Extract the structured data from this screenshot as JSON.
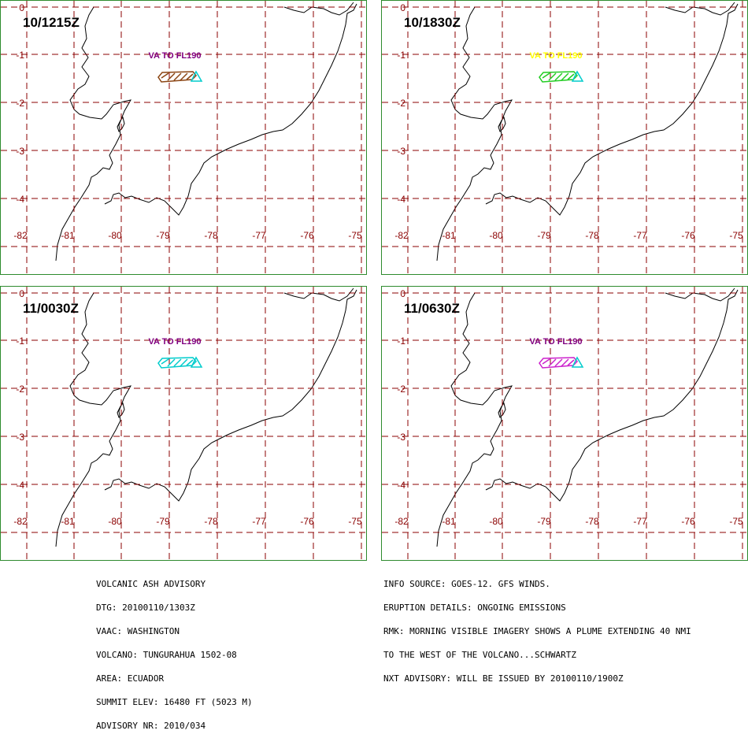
{
  "panels": [
    {
      "time": "10/1215Z",
      "label_text": "VA TO FL190",
      "label_color": "#800080",
      "plume_color": "#8b4513"
    },
    {
      "time": "10/1830Z",
      "label_text": "VA TO FL190",
      "label_color": "#ffff00",
      "plume_color": "#22cc22"
    },
    {
      "time": "11/0030Z",
      "label_text": "VA TO FL190",
      "label_color": "#800080",
      "plume_color": "#00cccc"
    },
    {
      "time": "11/0630Z",
      "label_text": "VA TO FL190",
      "label_color": "#800080",
      "plume_color": "#cc22cc"
    }
  ],
  "map": {
    "lon_labels": [
      "-82",
      "-81",
      "-80",
      "-79",
      "-78",
      "-77",
      "-76",
      "-75"
    ],
    "lat_labels": [
      "0",
      "-1",
      "-2",
      "-3",
      "-4"
    ],
    "grid_color": "#8b0000",
    "volcano_color": "#00cccc"
  },
  "advisory_left": [
    "VOLCANIC ASH ADVISORY",
    "DTG: 20100110/1303Z",
    "VAAC: WASHINGTON",
    "VOLCANO: TUNGURAHUA 1502-08",
    "AREA: ECUADOR",
    "SUMMIT ELEV: 16480 FT (5023 M)",
    "ADVISORY NR: 2010/034"
  ],
  "advisory_right": [
    "INFO SOURCE: GOES-12. GFS WINDS.",
    "ERUPTION DETAILS: ONGOING EMISSIONS",
    "RMK: MORNING VISIBLE IMAGERY SHOWS A PLUME EXTENDING 40 NMI",
    "TO THE WEST OF THE VOLCANO...SCHWARTZ",
    "NXT ADVISORY: WILL BE ISSUED BY 20100110/1900Z"
  ]
}
